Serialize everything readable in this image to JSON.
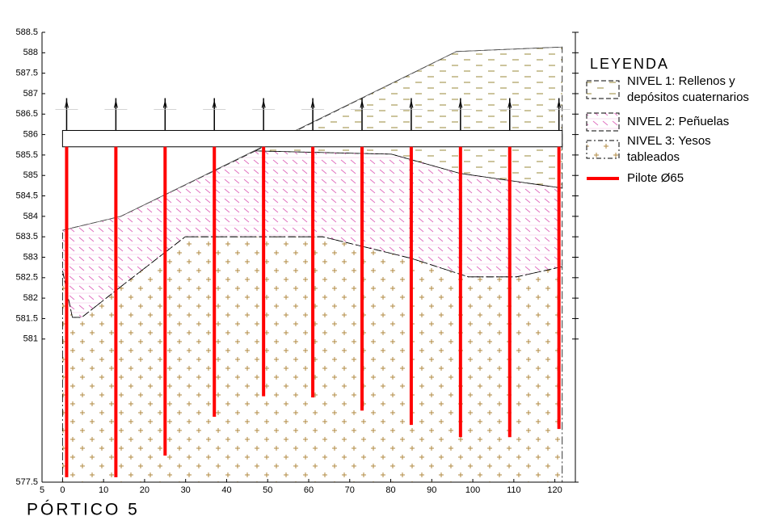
{
  "chart_data": {
    "type": "profile",
    "title": "PÓRTICO 5",
    "legend_title": "LEYENDA",
    "xlim": [
      -5,
      125
    ],
    "ylim": [
      577.5,
      588.5
    ],
    "xticks": [
      {
        "value": -5,
        "label": "5"
      },
      0,
      10,
      20,
      30,
      40,
      50,
      60,
      70,
      80,
      90,
      100,
      110,
      120
    ],
    "yticks": [
      588.5,
      588,
      587.5,
      587,
      586.5,
      586,
      585.5,
      585,
      584.5,
      584,
      583.5,
      583,
      582.5,
      582,
      581.5,
      581,
      577.5
    ],
    "ground": {
      "x": [
        0,
        14.2,
        96,
        121.8
      ],
      "values": [
        583.66,
        584.0,
        588.03,
        588.14
      ]
    },
    "beam": {
      "x": [
        0,
        121.8
      ],
      "y": [
        585.7,
        586.1
      ]
    },
    "layers": [
      {
        "name": [
          "NIVEL 1: Rellenos y",
          "depósitos cuaternarios"
        ],
        "color": "#9a8a3a",
        "pattern": "dash",
        "x": [
          47,
          96,
          121.8,
          121.8,
          96.9,
          80.2
        ],
        "y": [
          585.6,
          588.03,
          588.14,
          584.69,
          585.05,
          585.52
        ]
      },
      {
        "name": [
          "NIVEL 2: Peñuelas"
        ],
        "color": "#e070c0",
        "pattern": "hatch",
        "x": [
          0,
          14.2,
          47,
          80.2,
          96.9,
          121.8,
          121.8,
          110.7,
          98.9,
          85.1,
          72.9,
          63.4,
          29.9,
          14.2,
          4.7,
          2.4,
          0
        ],
        "y": [
          583.66,
          584.0,
          585.6,
          585.52,
          585.05,
          584.69,
          582.77,
          582.52,
          582.52,
          582.97,
          583.27,
          583.5,
          583.5,
          582.28,
          581.53,
          581.53,
          582.67
        ]
      },
      {
        "name": [
          "NIVEL 3: Yesos",
          "tableados"
        ],
        "color": "#b08a40",
        "pattern": "cross",
        "x": [
          0,
          2.4,
          4.7,
          14.2,
          29.9,
          63.4,
          72.9,
          85.1,
          98.9,
          110.7,
          121.8,
          121.8,
          0
        ],
        "y": [
          582.67,
          581.53,
          581.53,
          582.28,
          583.5,
          583.5,
          583.27,
          582.97,
          582.52,
          582.52,
          582.77,
          577.5,
          577.5
        ]
      }
    ],
    "piles": {
      "name": "Pilote Ø65",
      "color": "#ff0000",
      "top": 585.7,
      "x": [
        1,
        13,
        25,
        37,
        49,
        61,
        73,
        85,
        97,
        109,
        121
      ],
      "values": [
        577.62,
        577.62,
        578.15,
        579.1,
        579.6,
        579.57,
        579.25,
        578.9,
        578.6,
        578.6,
        578.8
      ]
    }
  }
}
